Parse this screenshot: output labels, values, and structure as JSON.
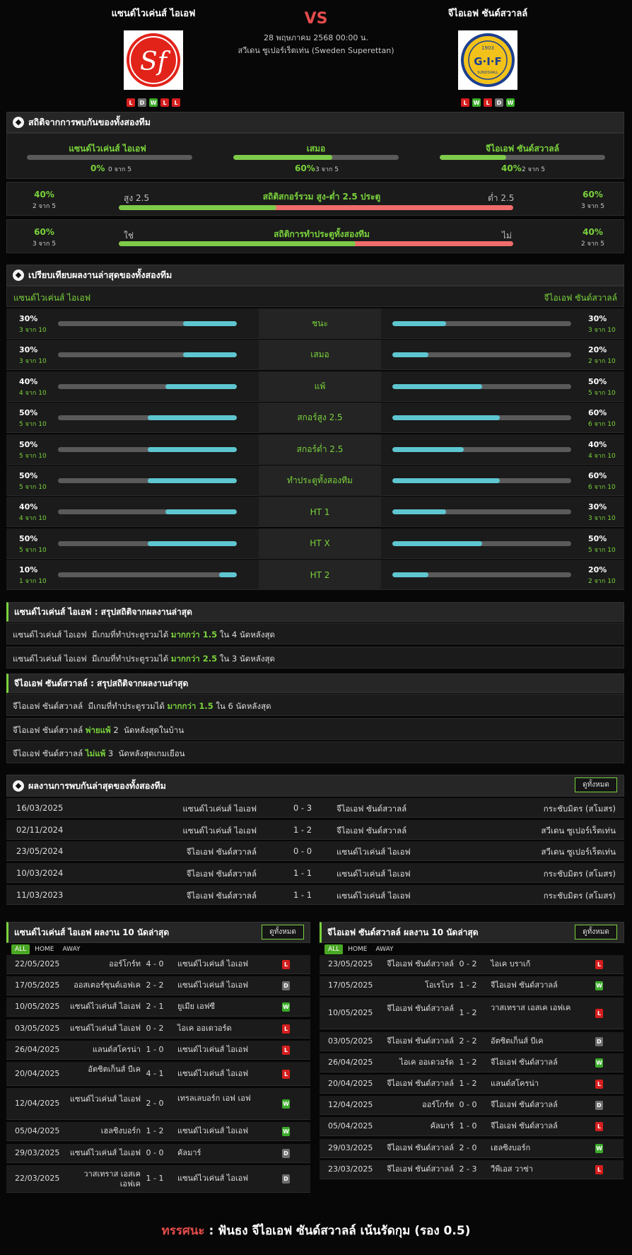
{
  "header": {
    "home_name": "แซนด์ไวเค่นส์ ไอเอฟ",
    "away_name": "จีไอเอฟ ซันด์สวาลล์",
    "vs": "VS",
    "date": "28 พฤษภาคม 2568 00:00 น.",
    "league": "สวีเดน ซูเปอร์เร็ตเท่น (Sweden Superettan)",
    "home_form": [
      "L",
      "D",
      "W",
      "L",
      "L"
    ],
    "away_form": [
      "L",
      "W",
      "L",
      "D",
      "W"
    ],
    "home_logo_text": "Sf",
    "away_logo_text": "G·I·F",
    "away_logo_year": "1903",
    "away_logo_sub": "SUNDSVALL"
  },
  "h2h": {
    "title": "สถิติจากการพบกันของทั้งสองทีม",
    "home_label": "แซนด์ไวเค่นส์ ไอเอฟ",
    "home_pct": "0%",
    "home_of": "0 จาก 5",
    "home_val": 0,
    "draw_label": "เสมอ",
    "draw_pct": "60%",
    "draw_of": "3 จาก 5",
    "draw_val": 0.6,
    "away_label": "จีไอเอฟ ซันด์สวาลล์",
    "away_pct": "40%",
    "away_of": "2 จาก 5",
    "away_val": 0.4,
    "ou": {
      "title": "สถิติสกอร์รวม สูง-ต่ำ 2.5 ประตู",
      "left_pct": "40%",
      "left_of": "2 จาก 5",
      "right_pct": "60%",
      "right_of": "3 จาก 5",
      "left_lbl": "สูง 2.5",
      "right_lbl": "ต่ำ 2.5",
      "val": 0.4
    },
    "btts": {
      "title": "สถิติการทำประตูทั้งสองทีม",
      "left_pct": "60%",
      "left_of": "3 จาก 5",
      "right_pct": "40%",
      "right_of": "2 จาก 5",
      "left_lbl": "ใช่",
      "right_lbl": "ไม่",
      "val": 0.6
    }
  },
  "compare": {
    "title": "เปรียบเทียบผลงานล่าสุดของทั้งสองทีม",
    "home": "แซนด์ไวเค่นส์ ไอเอฟ",
    "away": "จีไอเอฟ ซันด์สวาลล์",
    "rows": [
      {
        "label": "ชนะ",
        "hp": "30%",
        "ho": "3 จาก 10",
        "hv": 0.3,
        "ap": "30%",
        "ao": "3 จาก 10",
        "av": 0.3
      },
      {
        "label": "เสมอ",
        "hp": "30%",
        "ho": "3 จาก 10",
        "hv": 0.3,
        "ap": "20%",
        "ao": "2 จาก 10",
        "av": 0.2
      },
      {
        "label": "แพ้",
        "hp": "40%",
        "ho": "4 จาก 10",
        "hv": 0.4,
        "ap": "50%",
        "ao": "5 จาก 10",
        "av": 0.5
      },
      {
        "label": "สกอร์สูง 2.5",
        "hp": "50%",
        "ho": "5 จาก 10",
        "hv": 0.5,
        "ap": "60%",
        "ao": "6 จาก 10",
        "av": 0.6
      },
      {
        "label": "สกอร์ต่ำ 2.5",
        "hp": "50%",
        "ho": "5 จาก 10",
        "hv": 0.5,
        "ap": "40%",
        "ao": "4 จาก 10",
        "av": 0.4
      },
      {
        "label": "ทำประตูทั้งสองทีม",
        "hp": "50%",
        "ho": "5 จาก 10",
        "hv": 0.5,
        "ap": "60%",
        "ao": "6 จาก 10",
        "av": 0.6
      },
      {
        "label": "HT 1",
        "hp": "40%",
        "ho": "4 จาก 10",
        "hv": 0.4,
        "ap": "30%",
        "ao": "3 จาก 10",
        "av": 0.3
      },
      {
        "label": "HT X",
        "hp": "50%",
        "ho": "5 จาก 10",
        "hv": 0.5,
        "ap": "50%",
        "ao": "5 จาก 10",
        "av": 0.5
      },
      {
        "label": "HT 2",
        "hp": "10%",
        "ho": "1 จาก 10",
        "hv": 0.1,
        "ap": "20%",
        "ao": "2 จาก 10",
        "av": 0.2
      }
    ]
  },
  "summary_home": {
    "title": "แซนด์ไวเค่นส์ ไอเอฟ : สรุปสถิติจากผลงานล่าสุด",
    "lines": [
      [
        "แซนด์ไวเค่นส์ ไอเอฟ  มีเกมที่ทำประตูรวมได้ ",
        "มากกว่า 1.5",
        " ใน 4 นัดหลังสุด"
      ],
      [
        "แซนด์ไวเค่นส์ ไอเอฟ  มีเกมที่ทำประตูรวมได้ ",
        "มากกว่า 2.5",
        " ใน 3 นัดหลังสุด"
      ]
    ]
  },
  "summary_away": {
    "title": "จีไอเอฟ ซันด์สวาลล์ : สรุปสถิติจากผลงานล่าสุด",
    "lines": [
      [
        "จีไอเอฟ ซันด์สวาลล์  มีเกมที่ทำประตูรวมได้ ",
        "มากกว่า 1.5",
        " ใน 6 นัดหลังสุด"
      ],
      [
        "จีไอเอฟ ซันด์สวาลล์ ",
        "พ่ายแพ้",
        " 2  นัดหลังสุดในบ้าน"
      ],
      [
        "จีไอเอฟ ซันด์สวาลล์ ",
        "ไม่แพ้",
        " 3  นัดหลังสุดเกมเยือน"
      ]
    ]
  },
  "h2h_list": {
    "title": "ผลงานการพบกันล่าสุดของทั้งสองทีม",
    "btn": "ดูทั้งหมด",
    "rows": [
      [
        "16/03/2025",
        "แซนด์ไวเค่นส์ ไอเอฟ",
        "0 - 3",
        "จีไอเอฟ ซันด์สวาลล์",
        "กระชับมิตร (สโมสร)"
      ],
      [
        "02/11/2024",
        "แซนด์ไวเค่นส์ ไอเอฟ",
        "1 - 2",
        "จีไอเอฟ ซันด์สวาลล์",
        "สวีเดน ซูเปอร์เร็ตเท่น"
      ],
      [
        "23/05/2024",
        "จีไอเอฟ ซันด์สวาลล์",
        "0 - 0",
        "แซนด์ไวเค่นส์ ไอเอฟ",
        "สวีเดน ซูเปอร์เร็ตเท่น"
      ],
      [
        "10/03/2024",
        "จีไอเอฟ ซันด์สวาลล์",
        "1 - 1",
        "แซนด์ไวเค่นส์ ไอเอฟ",
        "กระชับมิตร (สโมสร)"
      ],
      [
        "11/03/2023",
        "จีไอเอฟ ซันด์สวาลล์",
        "1 - 1",
        "แซนด์ไวเค่นส์ ไอเอฟ",
        "กระชับมิตร (สโมสร)"
      ]
    ]
  },
  "last_home": {
    "title": "แซนด์ไวเค่นส์ ไอเอฟ ผลงาน 10 นัดล่าสุด",
    "btn": "ดูทั้งหมด",
    "tabs": [
      "ALL",
      "HOME",
      "AWAY"
    ],
    "rows": [
      [
        "22/05/2025",
        "ออร์โกร์ท",
        "4 - 0",
        "แซนด์ไวเค่นส์ ไอเอฟ",
        "L"
      ],
      [
        "17/05/2025",
        "ออสเตอร์ซุนด์เอฟเค",
        "2 - 2",
        "แซนด์ไวเค่นส์ ไอเอฟ",
        "D"
      ],
      [
        "10/05/2025",
        "แซนด์ไวเค่นส์ ไอเอฟ",
        "2 - 1",
        "ยูเมีย เอฟซี",
        "W"
      ],
      [
        "03/05/2025",
        "แซนด์ไวเค่นส์ ไอเอฟ",
        "0 - 2",
        "ไอเค ออเดวอร์ด",
        "L"
      ],
      [
        "26/04/2025",
        "แลนด์สโครน่า",
        "1 - 0",
        "แซนด์ไวเค่นส์ ไอเอฟ",
        "L"
      ],
      [
        "20/04/2025",
        "อัตซิตเก็นส์ บีเค",
        "4 - 1",
        "แซนด์ไวเค่นส์ ไอเอฟ",
        "L"
      ],
      [
        "12/04/2025",
        "แซนด์ไวเค่นส์ ไอเอฟ",
        "2 - 0",
        "เทรลเลบอร์ก เอฟ เอฟ",
        "W"
      ],
      [
        "05/04/2025",
        "เฮลซิงบอร์ก",
        "1 - 2",
        "แซนด์ไวเค่นส์ ไอเอฟ",
        "W"
      ],
      [
        "29/03/2025",
        "แซนด์ไวเค่นส์ ไอเอฟ",
        "0 - 0",
        "คัลมาร์",
        "D"
      ],
      [
        "22/03/2025",
        "วาสเทราส เอสเค เอฟเค",
        "1 - 1",
        "แซนด์ไวเค่นส์ ไอเอฟ",
        "D"
      ]
    ]
  },
  "last_away": {
    "title": "จีไอเอฟ ซันด์สวาลล์ ผลงาน 10 นัดล่าสุด",
    "btn": "ดูทั้งหมด",
    "tabs": [
      "ALL",
      "HOME",
      "AWAY"
    ],
    "rows": [
      [
        "23/05/2025",
        "จีไอเอฟ ซันด์สวาลล์",
        "0 - 2",
        "ไอเค บราเก้",
        "L"
      ],
      [
        "17/05/2025",
        "โอเรโบร",
        "1 - 2",
        "จีไอเอฟ ซันด์สวาลล์",
        "W"
      ],
      [
        "10/05/2025",
        "จีไอเอฟ ซันด์สวาลล์",
        "1 - 2",
        "วาสเทราส เอสเค เอฟเค",
        "L"
      ],
      [
        "03/05/2025",
        "จีไอเอฟ ซันด์สวาลล์",
        "2 - 2",
        "อัตซิตเก็นส์ บีเค",
        "D"
      ],
      [
        "26/04/2025",
        "ไอเค ออเดวอร์ด",
        "1 - 2",
        "จีไอเอฟ ซันด์สวาลล์",
        "W"
      ],
      [
        "20/04/2025",
        "จีไอเอฟ ซันด์สวาลล์",
        "1 - 2",
        "แลนด์สโครน่า",
        "L"
      ],
      [
        "12/04/2025",
        "ออร์โกร์ท",
        "0 - 0",
        "จีไอเอฟ ซันด์สวาลล์",
        "D"
      ],
      [
        "05/04/2025",
        "คัลมาร์",
        "1 - 0",
        "จีไอเอฟ ซันด์สวาลล์",
        "L"
      ],
      [
        "29/03/2025",
        "จีไอเอฟ ซันด์สวาลล์",
        "2 - 0",
        "เฮลซิงบอร์ก",
        "W"
      ],
      [
        "23/03/2025",
        "จีไอเอฟ ซันด์สวาลล์",
        "2 - 3",
        "วีพีเอส วาซ่า",
        "L"
      ]
    ]
  },
  "verdict": {
    "label": "ทรรศนะ",
    "sep": " : ",
    "text": "ฟันธง จีไอเอฟ ซันด์สวาลล์ เน้นรัดกุม (รอง 0.5)"
  },
  "colors": {
    "accent_green": "#7ad33c",
    "red": "#e44b4b",
    "cyan": "#5ec6d0",
    "win": "#3bab2a",
    "loss": "#d61e1e",
    "draw": "#6d6d6d"
  }
}
